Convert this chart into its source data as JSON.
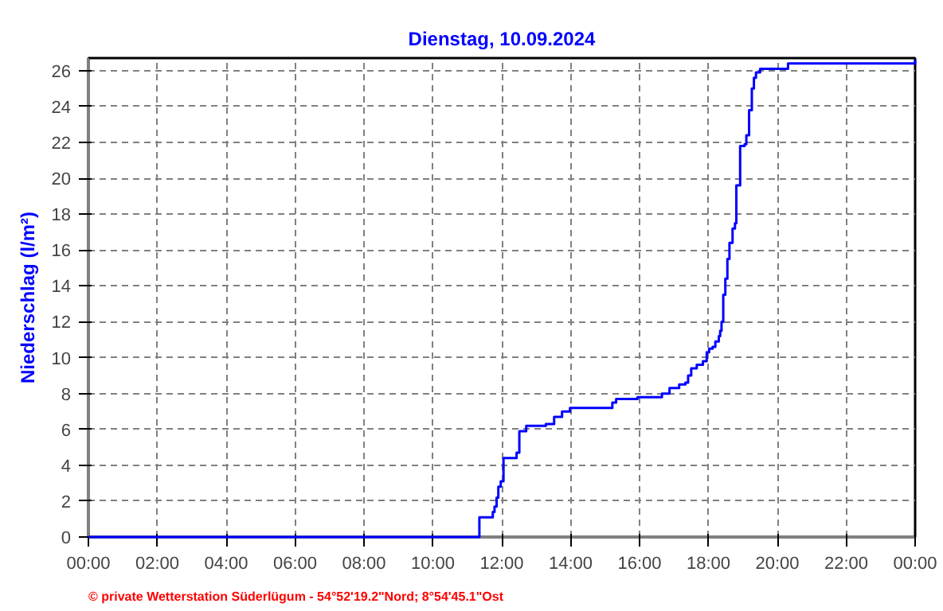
{
  "chart_data": {
    "type": "step",
    "title": "Dienstag, 10.09.2024",
    "ylabel": "Niederschlag (l/m²)",
    "x": [
      0,
      11.35,
      11.74,
      11.79,
      11.85,
      11.9,
      11.97,
      12.05,
      12.43,
      12.51,
      12.71,
      13.28,
      13.52,
      13.75,
      13.98,
      15.21,
      15.32,
      15.94,
      16.65,
      16.87,
      17.15,
      17.33,
      17.41,
      17.5,
      17.66,
      17.84,
      17.95,
      18.02,
      18.12,
      18.2,
      18.3,
      18.34,
      18.38,
      18.43,
      18.49,
      18.55,
      18.61,
      18.7,
      18.77,
      18.81,
      18.92,
      19.05,
      19.1,
      19.18,
      19.26,
      19.32,
      19.38,
      19.5,
      20.31,
      24
    ],
    "series": [
      {
        "color": "#0000ff",
        "values": [
          0,
          1.1,
          1.4,
          1.7,
          2.2,
          2.8,
          3.1,
          4.4,
          4.7,
          5.9,
          6.2,
          6.3,
          6.7,
          7.0,
          7.2,
          7.5,
          7.7,
          7.8,
          8.0,
          8.3,
          8.5,
          8.6,
          9.0,
          9.4,
          9.6,
          9.8,
          10.3,
          10.5,
          10.6,
          10.9,
          11.2,
          11.5,
          12.0,
          13.5,
          14.4,
          15.5,
          16.4,
          17.2,
          17.5,
          19.6,
          21.8,
          21.9,
          22.4,
          23.8,
          25.0,
          25.6,
          25.9,
          26.1,
          26.4,
          26.6
        ]
      }
    ],
    "xlim": [
      0,
      24
    ],
    "ylim": [
      0,
      26.7
    ],
    "xticks": [
      {
        "value": 0,
        "label": "00:00"
      },
      {
        "value": 2,
        "label": "02:00"
      },
      {
        "value": 4,
        "label": "04:00"
      },
      {
        "value": 6,
        "label": "06:00"
      },
      {
        "value": 8,
        "label": "08:00"
      },
      {
        "value": 10,
        "label": "10:00"
      },
      {
        "value": 12,
        "label": "12:00"
      },
      {
        "value": 14,
        "label": "14:00"
      },
      {
        "value": 16,
        "label": "16:00"
      },
      {
        "value": 18,
        "label": "18:00"
      },
      {
        "value": 20,
        "label": "20:00"
      },
      {
        "value": 22,
        "label": "22:00"
      },
      {
        "value": 24,
        "label": "00:00"
      }
    ],
    "yticks": [
      0,
      2,
      4,
      6,
      8,
      10,
      12,
      14,
      16,
      18,
      20,
      22,
      24,
      26
    ],
    "grid": true,
    "line_style": "solid",
    "annotations": [
      "© private Wetterstation Süderlügum - 54°52'19.2\"Nord; 8°54'45.1\"Ost"
    ]
  }
}
